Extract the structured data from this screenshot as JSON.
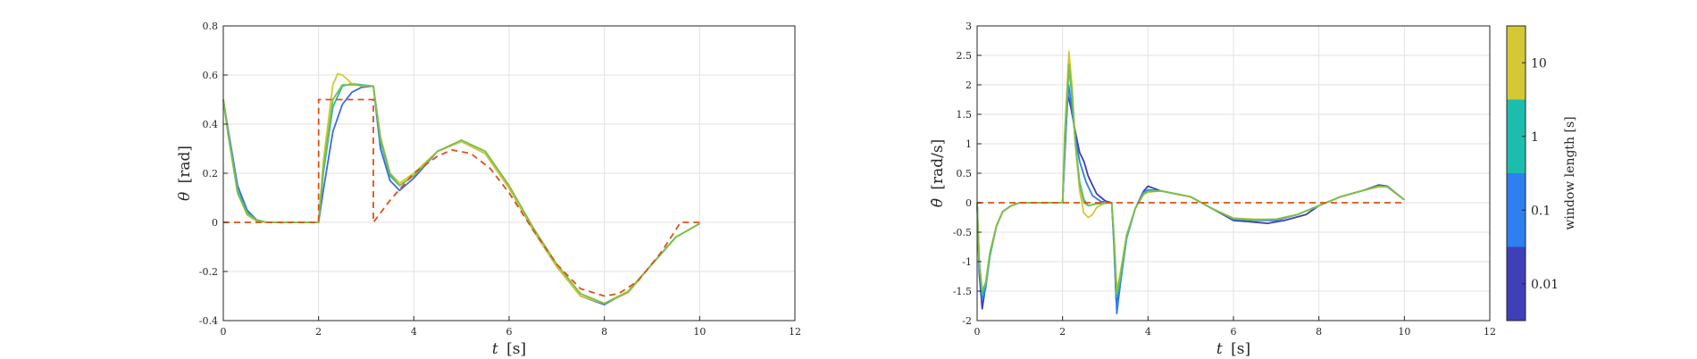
{
  "chart_data": [
    {
      "type": "line",
      "title": "",
      "xlabel_var": "t",
      "xlabel_unit": "[s]",
      "ylabel_var": "θ",
      "ylabel_unit": "[rad]",
      "xlim": [
        0,
        12
      ],
      "ylim": [
        -0.4,
        0.8
      ],
      "xticks": [
        0,
        2,
        4,
        6,
        8,
        10,
        12
      ],
      "yticks": [
        -0.4,
        -0.2,
        0,
        0.2,
        0.4,
        0.6,
        0.8
      ],
      "xtick_labels": [
        "0",
        "2",
        "4",
        "6",
        "8",
        "10",
        "12"
      ],
      "ytick_labels": [
        "-0.4",
        "-0.2",
        "0",
        "0.2",
        "0.4",
        "0.6",
        "0.8"
      ],
      "grid": true,
      "reference": {
        "style": "dashed",
        "color": "#D95319",
        "x": [
          0,
          2,
          2,
          3.15,
          3.15,
          3.5,
          4.0,
          4.5,
          4.8,
          5.2,
          5.6,
          6.0,
          6.5,
          7.0,
          7.5,
          8.0,
          8.3,
          8.7,
          9.2,
          9.6,
          10.0
        ],
        "y": [
          0,
          0,
          0.5,
          0.5,
          0.0,
          0.09,
          0.2,
          0.27,
          0.295,
          0.28,
          0.22,
          0.12,
          -0.03,
          -0.17,
          -0.27,
          -0.3,
          -0.29,
          -0.24,
          -0.12,
          0.0,
          0.0
        ]
      },
      "series": [
        {
          "color": "#4169E1",
          "x": [
            0,
            0.1,
            0.3,
            0.5,
            0.7,
            0.9,
            1.2,
            2.0,
            2.1,
            2.3,
            2.5,
            2.7,
            2.9,
            3.15,
            3.3,
            3.5,
            3.7,
            4.0,
            4.5,
            5.0,
            5.5,
            6.0,
            6.5,
            7.0,
            7.5,
            8.0,
            8.5,
            9.0,
            9.5,
            10.0
          ],
          "y": [
            0.5,
            0.38,
            0.15,
            0.05,
            0.01,
            0.0,
            0.0,
            0.0,
            0.13,
            0.37,
            0.48,
            0.53,
            0.55,
            0.555,
            0.3,
            0.17,
            0.13,
            0.18,
            0.29,
            0.33,
            0.28,
            0.14,
            -0.03,
            -0.18,
            -0.3,
            -0.335,
            -0.28,
            -0.17,
            -0.06,
            -0.005
          ]
        },
        {
          "color": "#1DBDAE",
          "x": [
            0,
            0.1,
            0.3,
            0.5,
            0.7,
            0.9,
            1.2,
            2.0,
            2.1,
            2.3,
            2.5,
            2.7,
            2.9,
            3.15,
            3.3,
            3.5,
            3.7,
            4.0,
            4.5,
            5.0,
            5.5,
            6.0,
            6.5,
            7.0,
            7.5,
            8.0,
            8.5,
            9.0,
            9.5,
            10.0
          ],
          "y": [
            0.5,
            0.37,
            0.13,
            0.04,
            0.01,
            0.0,
            0.0,
            0.0,
            0.2,
            0.47,
            0.555,
            0.565,
            0.56,
            0.555,
            0.33,
            0.19,
            0.15,
            0.19,
            0.29,
            0.33,
            0.28,
            0.14,
            -0.03,
            -0.18,
            -0.3,
            -0.33,
            -0.28,
            -0.17,
            -0.06,
            -0.005
          ]
        },
        {
          "color": "#D4C834",
          "x": [
            0,
            0.1,
            0.3,
            0.5,
            0.7,
            0.9,
            1.2,
            2.0,
            2.1,
            2.3,
            2.4,
            2.5,
            2.7,
            2.9,
            3.15,
            3.3,
            3.5,
            3.7,
            4.0,
            4.5,
            5.0,
            5.5,
            6.0,
            6.5,
            7.0,
            7.5,
            8.0,
            8.5,
            9.0,
            9.5,
            10.0
          ],
          "y": [
            0.5,
            0.36,
            0.12,
            0.03,
            0.005,
            0.0,
            0.0,
            0.0,
            0.25,
            0.56,
            0.605,
            0.6,
            0.565,
            0.555,
            0.555,
            0.35,
            0.2,
            0.16,
            0.2,
            0.29,
            0.33,
            0.28,
            0.14,
            -0.03,
            -0.18,
            -0.3,
            -0.33,
            -0.28,
            -0.17,
            -0.06,
            -0.005
          ]
        },
        {
          "color": "#7FBE4A",
          "x": [
            0,
            0.1,
            0.3,
            0.5,
            0.7,
            0.9,
            1.2,
            2.0,
            2.1,
            2.3,
            2.5,
            2.7,
            2.9,
            3.15,
            3.3,
            3.5,
            3.7,
            4.0,
            4.5,
            5.0,
            5.5,
            6.0,
            6.5,
            7.0,
            7.5,
            8.0,
            8.5,
            9.0,
            9.5,
            10.0
          ],
          "y": [
            0.5,
            0.36,
            0.12,
            0.035,
            0.008,
            0.0,
            0.0,
            0.0,
            0.22,
            0.5,
            0.56,
            0.56,
            0.558,
            0.555,
            0.34,
            0.2,
            0.15,
            0.19,
            0.29,
            0.335,
            0.29,
            0.15,
            -0.02,
            -0.17,
            -0.29,
            -0.33,
            -0.285,
            -0.17,
            -0.06,
            -0.005
          ]
        }
      ]
    },
    {
      "type": "line",
      "title": "",
      "xlabel_var": "t",
      "xlabel_unit": "[s]",
      "ylabel_var": "θ̇",
      "ylabel_unit": "[rad/s]",
      "xlim": [
        0,
        12
      ],
      "ylim": [
        -2,
        3
      ],
      "xticks": [
        0,
        2,
        4,
        6,
        8,
        10,
        12
      ],
      "yticks": [
        -2,
        -1.5,
        -1,
        -0.5,
        0,
        0.5,
        1,
        1.5,
        2,
        2.5,
        3
      ],
      "xtick_labels": [
        "0",
        "2",
        "4",
        "6",
        "8",
        "10",
        "12"
      ],
      "ytick_labels": [
        "-2",
        "-1.5",
        "-1",
        "-0.5",
        "0",
        "0.5",
        "1",
        "1.5",
        "2",
        "2.5",
        "3"
      ],
      "grid": true,
      "reference": {
        "style": "dashed",
        "color": "#D95319",
        "x": [
          0,
          10
        ],
        "y": [
          0,
          0
        ]
      },
      "series": [
        {
          "color": "#3F3FB8",
          "x": [
            0,
            0.05,
            0.12,
            0.18,
            0.3,
            0.45,
            0.6,
            0.8,
            1.0,
            2.0,
            2.05,
            2.12,
            2.2,
            2.3,
            2.4,
            2.5,
            2.6,
            2.8,
            3.0,
            3.15,
            3.2,
            3.26,
            3.35,
            3.5,
            3.7,
            3.9,
            4.0,
            4.3,
            5.0,
            5.5,
            6.0,
            6.5,
            6.8,
            7.2,
            7.7,
            8.0,
            8.5,
            9.0,
            9.4,
            9.6,
            10.0
          ],
          "y": [
            0,
            -1.2,
            -1.8,
            -1.5,
            -0.9,
            -0.4,
            -0.15,
            -0.05,
            0.0,
            0.0,
            0.8,
            1.85,
            1.6,
            1.2,
            0.85,
            0.7,
            0.45,
            0.15,
            0.03,
            0.0,
            -0.6,
            -1.7,
            -1.3,
            -0.6,
            -0.1,
            0.2,
            0.28,
            0.2,
            0.1,
            -0.1,
            -0.3,
            -0.33,
            -0.35,
            -0.3,
            -0.2,
            -0.05,
            0.1,
            0.2,
            0.3,
            0.28,
            0.05
          ]
        },
        {
          "color": "#2E7FEF",
          "x": [
            0,
            0.05,
            0.12,
            0.2,
            0.3,
            0.45,
            0.6,
            0.8,
            1.0,
            2.0,
            2.05,
            2.14,
            2.22,
            2.3,
            2.4,
            2.55,
            2.7,
            2.9,
            3.15,
            3.2,
            3.27,
            3.35,
            3.5,
            3.7,
            3.9,
            4.0,
            4.3,
            5.0,
            5.5,
            6.0,
            6.5,
            7.0,
            7.5,
            8.0,
            8.5,
            9.0,
            9.4,
            9.6,
            10.0
          ],
          "y": [
            0,
            -1.1,
            -1.65,
            -1.45,
            -0.9,
            -0.4,
            -0.15,
            -0.05,
            0.0,
            0.0,
            0.9,
            2.0,
            1.6,
            1.1,
            0.7,
            0.35,
            0.12,
            0.02,
            0.0,
            -0.7,
            -1.88,
            -1.4,
            -0.6,
            -0.1,
            0.18,
            0.22,
            0.2,
            0.1,
            -0.1,
            -0.28,
            -0.3,
            -0.3,
            -0.2,
            -0.05,
            0.1,
            0.2,
            0.28,
            0.27,
            0.05
          ]
        },
        {
          "color": "#1DBDAE",
          "x": [
            0,
            0.05,
            0.12,
            0.2,
            0.3,
            0.45,
            0.6,
            0.8,
            1.0,
            2.0,
            2.05,
            2.15,
            2.22,
            2.3,
            2.4,
            2.5,
            2.6,
            2.8,
            3.15,
            3.2,
            3.27,
            3.35,
            3.5,
            3.7,
            3.9,
            4.0,
            4.3,
            5.0,
            5.5,
            6.0,
            6.5,
            7.0,
            7.5,
            8.0,
            8.5,
            9.0,
            9.4,
            9.6,
            10.0
          ],
          "y": [
            0,
            -1.0,
            -1.55,
            -1.4,
            -0.9,
            -0.4,
            -0.15,
            -0.05,
            0.0,
            0.0,
            1.0,
            2.3,
            1.8,
            1.0,
            0.35,
            0.05,
            -0.05,
            -0.02,
            0.0,
            -0.6,
            -1.6,
            -1.3,
            -0.6,
            -0.1,
            0.16,
            0.2,
            0.2,
            0.1,
            -0.1,
            -0.27,
            -0.3,
            -0.28,
            -0.2,
            -0.05,
            0.1,
            0.2,
            0.28,
            0.27,
            0.05
          ]
        },
        {
          "color": "#D4C834",
          "x": [
            0,
            0.05,
            0.12,
            0.2,
            0.3,
            0.45,
            0.6,
            0.8,
            1.0,
            2.0,
            2.05,
            2.15,
            2.22,
            2.3,
            2.4,
            2.5,
            2.6,
            2.7,
            2.8,
            3.0,
            3.15,
            3.2,
            3.27,
            3.35,
            3.5,
            3.7,
            3.9,
            4.0,
            4.3,
            5.0,
            5.5,
            6.0,
            6.5,
            7.0,
            7.5,
            8.0,
            8.5,
            9.0,
            9.4,
            9.6,
            10.0
          ],
          "y": [
            0,
            -1.0,
            -1.5,
            -1.35,
            -0.85,
            -0.4,
            -0.15,
            -0.05,
            0.0,
            0.0,
            1.2,
            2.57,
            2.0,
            1.0,
            0.2,
            -0.18,
            -0.25,
            -0.2,
            -0.08,
            0.0,
            0.0,
            -0.5,
            -1.5,
            -1.2,
            -0.55,
            -0.1,
            0.14,
            0.18,
            0.2,
            0.1,
            -0.1,
            -0.26,
            -0.28,
            -0.28,
            -0.2,
            -0.05,
            0.1,
            0.2,
            0.27,
            0.27,
            0.05
          ]
        },
        {
          "color": "#7FBE4A",
          "x": [
            0,
            0.05,
            0.12,
            0.2,
            0.3,
            0.45,
            0.6,
            0.8,
            1.0,
            2.0,
            2.05,
            2.15,
            2.22,
            2.3,
            2.4,
            2.5,
            2.6,
            2.8,
            3.15,
            3.2,
            3.27,
            3.35,
            3.5,
            3.7,
            3.9,
            4.0,
            4.3,
            5.0,
            5.5,
            6.0,
            6.5,
            7.0,
            7.5,
            8.0,
            8.5,
            9.0,
            9.4,
            9.6,
            10.0
          ],
          "y": [
            0,
            -1.0,
            -1.5,
            -1.35,
            -0.85,
            -0.4,
            -0.15,
            -0.05,
            0.0,
            0.0,
            1.1,
            2.35,
            1.9,
            1.0,
            0.3,
            0.0,
            -0.05,
            -0.02,
            0.0,
            -0.55,
            -1.55,
            -1.25,
            -0.55,
            -0.1,
            0.15,
            0.19,
            0.2,
            0.1,
            -0.1,
            -0.27,
            -0.29,
            -0.28,
            -0.2,
            -0.05,
            0.1,
            0.2,
            0.28,
            0.27,
            0.05
          ]
        }
      ]
    }
  ],
  "colorbar": {
    "label": "window length [s]",
    "segments": [
      {
        "color": "#3F3FB8",
        "label": "0.01"
      },
      {
        "color": "#2E7FEF",
        "label": "0.1"
      },
      {
        "color": "#1DBDAE",
        "label": "1"
      },
      {
        "color": "#D4C834",
        "label": "10"
      }
    ]
  }
}
